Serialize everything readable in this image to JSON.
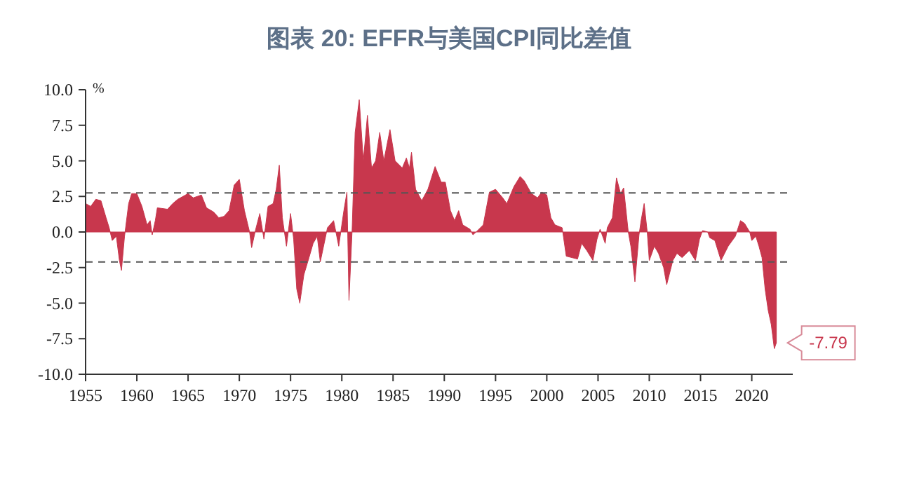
{
  "chart_data": {
    "type": "area",
    "title": "图表 20: EFFR与美国CPI同比差值",
    "ylabel": "%",
    "xlim": [
      1955,
      2024
    ],
    "ylim": [
      -10,
      10
    ],
    "xticks": [
      1955,
      1960,
      1965,
      1970,
      1975,
      1980,
      1985,
      1990,
      1995,
      2000,
      2005,
      2010,
      2015,
      2020
    ],
    "yticks": [
      {
        "value": -10,
        "label": "-10.0"
      },
      {
        "value": -7.5,
        "label": "-7.5"
      },
      {
        "value": -5,
        "label": "-5.0"
      },
      {
        "value": -2.5,
        "label": "-2.5"
      },
      {
        "value": 0,
        "label": "0.0"
      },
      {
        "value": 2.5,
        "label": "2.5"
      },
      {
        "value": 5,
        "label": "5.0"
      },
      {
        "value": 7.5,
        "label": "7.5"
      },
      {
        "value": 10,
        "label": "10.0"
      }
    ],
    "grid": false,
    "ref_lines": [
      {
        "axis": "y",
        "value": 2.75,
        "line_style": "dashed",
        "color": "#555555"
      },
      {
        "axis": "y",
        "value": -2.1,
        "line_style": "dashed",
        "color": "#555555"
      }
    ],
    "annotations": [
      {
        "text": "-7.79",
        "x": 2022.4,
        "y": -7.79
      }
    ],
    "series": [
      {
        "color": "#c8374d",
        "x": [
          1955.0,
          1955.5,
          1956.0,
          1956.5,
          1957.0,
          1957.3,
          1957.6,
          1958.0,
          1958.3,
          1958.5,
          1958.8,
          1959.2,
          1959.5,
          1960.0,
          1960.5,
          1961.0,
          1961.3,
          1961.5,
          1961.8,
          1962.0,
          1963.0,
          1963.5,
          1964.0,
          1965.0,
          1965.5,
          1966.3,
          1966.8,
          1967.5,
          1968.0,
          1968.5,
          1969.0,
          1969.5,
          1970.0,
          1970.5,
          1971.0,
          1971.2,
          1971.6,
          1972.0,
          1972.4,
          1972.8,
          1973.3,
          1973.6,
          1973.9,
          1974.2,
          1974.6,
          1975.0,
          1975.3,
          1975.6,
          1975.9,
          1976.3,
          1976.8,
          1977.2,
          1977.6,
          1977.9,
          1978.6,
          1979.2,
          1979.7,
          1980.2,
          1980.5,
          1980.7,
          1981.0,
          1981.3,
          1981.7,
          1982.1,
          1982.5,
          1982.9,
          1983.3,
          1983.7,
          1984.1,
          1984.7,
          1985.2,
          1985.9,
          1986.3,
          1986.6,
          1986.8,
          1987.2,
          1987.8,
          1988.4,
          1989.1,
          1989.7,
          1990.1,
          1990.6,
          1991.0,
          1991.4,
          1991.8,
          1992.5,
          1992.8,
          1993.1,
          1993.8,
          1994.4,
          1995.0,
          1995.7,
          1996.1,
          1996.8,
          1997.4,
          1997.8,
          1998.5,
          1999.1,
          1999.5,
          2000.0,
          2000.4,
          2000.8,
          2001.5,
          2001.9,
          2003.0,
          2003.4,
          2003.9,
          2004.5,
          2004.9,
          2005.2,
          2005.7,
          2005.9,
          2006.4,
          2006.8,
          2007.2,
          2007.5,
          2007.95,
          2008.2,
          2008.6,
          2009.0,
          2009.2,
          2009.5,
          2009.8,
          2010.0,
          2010.5,
          2010.9,
          2011.4,
          2011.7,
          2012.3,
          2012.7,
          2013.2,
          2013.9,
          2014.5,
          2014.9,
          2015.2,
          2015.7,
          2015.9,
          2016.4,
          2017.0,
          2017.7,
          2018.4,
          2018.9,
          2019.3,
          2019.8,
          2020.0,
          2020.4,
          2020.7,
          2021.0,
          2021.3,
          2021.6,
          2021.9,
          2022.2,
          2022.4
        ],
        "values": [
          2.0,
          1.8,
          2.3,
          2.2,
          1.0,
          0.3,
          -0.6,
          -0.3,
          -2.0,
          -2.7,
          -0.3,
          2.0,
          2.7,
          2.7,
          1.8,
          0.5,
          0.8,
          -0.2,
          0.8,
          1.7,
          1.6,
          2.0,
          2.3,
          2.7,
          2.4,
          2.6,
          1.7,
          1.4,
          1.0,
          1.1,
          1.5,
          3.3,
          3.7,
          1.5,
          0.0,
          -1.1,
          0.2,
          1.3,
          -0.5,
          1.8,
          2.0,
          3.0,
          4.7,
          1.0,
          -1.0,
          1.3,
          -0.5,
          -4.0,
          -5.0,
          -3.0,
          -1.8,
          -0.8,
          -0.3,
          -2.1,
          0.3,
          0.8,
          -1.0,
          1.5,
          2.8,
          -4.8,
          0.0,
          7.0,
          9.3,
          5.0,
          8.2,
          4.5,
          5.0,
          7.0,
          5.0,
          7.2,
          5.0,
          4.5,
          5.2,
          4.5,
          5.6,
          3.0,
          2.2,
          3.0,
          4.6,
          3.5,
          3.5,
          1.5,
          0.8,
          1.5,
          0.5,
          0.2,
          -0.2,
          0.0,
          0.5,
          2.8,
          3.0,
          2.4,
          2.0,
          3.2,
          3.9,
          3.6,
          2.7,
          2.4,
          2.8,
          2.6,
          1.0,
          0.5,
          0.3,
          -1.7,
          -1.9,
          -0.8,
          -1.3,
          -2.0,
          -0.5,
          0.2,
          -0.8,
          0.3,
          1.0,
          3.8,
          2.7,
          3.1,
          0.0,
          -1.0,
          -3.5,
          -0.2,
          0.8,
          2.0,
          0.0,
          -2.0,
          -1.0,
          -1.5,
          -2.5,
          -3.7,
          -2.0,
          -1.5,
          -1.8,
          -1.3,
          -2.0,
          -0.5,
          0.1,
          0.0,
          -0.4,
          -0.6,
          -2.0,
          -1.0,
          -0.3,
          0.8,
          0.6,
          0.0,
          -0.6,
          -0.3,
          -1.0,
          -1.8,
          -4.0,
          -5.5,
          -6.5,
          -8.2,
          -7.79
        ]
      }
    ]
  }
}
